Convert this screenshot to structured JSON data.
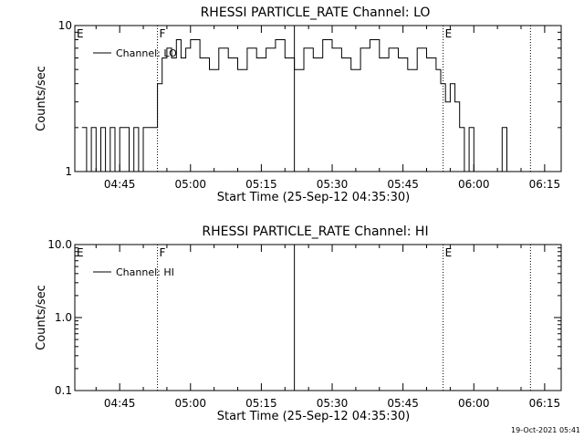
{
  "chart_data": [
    {
      "type": "line",
      "title": "RHESSI PARTICLE_RATE Channel: LO",
      "xlabel": "Start Time (25-Sep-12 04:35:30)",
      "ylabel": "Counts/sec",
      "yscale": "log",
      "ylim": [
        1,
        10
      ],
      "y_ticks": [
        "1",
        "10"
      ],
      "x_ticks": [
        "04:45",
        "05:00",
        "05:15",
        "05:30",
        "05:45",
        "06:00",
        "06:15"
      ],
      "legend": {
        "position": "top-left",
        "entries": [
          "Channel: LO"
        ]
      },
      "markers": [
        {
          "time": "04:35:30",
          "label": "E",
          "style": "dotted"
        },
        {
          "time": "04:53:00",
          "label": "F",
          "style": "dotted"
        },
        {
          "time": "05:22:00",
          "label": "",
          "style": "solid"
        },
        {
          "time": "05:53:30",
          "label": "E",
          "style": "dotted"
        },
        {
          "time": "06:12:00",
          "label": "",
          "style": "dotted"
        }
      ],
      "series": [
        {
          "name": "Channel: LO",
          "t": [
            "04:37:00",
            "04:38:00",
            "04:39:00",
            "04:40:00",
            "04:41:00",
            "04:42:00",
            "04:43:00",
            "04:44:00",
            "04:45:00",
            "04:46:00",
            "04:47:00",
            "04:48:00",
            "04:49:00",
            "04:50:00",
            "04:51:00",
            "04:52:00",
            "04:52:30",
            "04:53:00",
            "04:54:00",
            "04:55:00",
            "04:56:00",
            "04:57:00",
            "04:58:00",
            "04:59:00",
            "05:00:00",
            "05:02:00",
            "05:04:00",
            "05:06:00",
            "05:08:00",
            "05:10:00",
            "05:12:00",
            "05:14:00",
            "05:16:00",
            "05:18:00",
            "05:20:00",
            "05:22:00",
            "05:24:00",
            "05:26:00",
            "05:28:00",
            "05:30:00",
            "05:32:00",
            "05:34:00",
            "05:36:00",
            "05:38:00",
            "05:40:00",
            "05:42:00",
            "05:44:00",
            "05:46:00",
            "05:48:00",
            "05:50:00",
            "05:52:00",
            "05:53:00",
            "05:54:00",
            "05:55:00",
            "05:56:00",
            "05:57:00",
            "05:58:00",
            "05:59:00",
            "06:00:00",
            "06:01:00",
            "06:02:00",
            "06:03:00",
            "06:04:00",
            "06:05:00",
            "06:06:00",
            "06:07:00",
            "06:08:00",
            "06:09:00",
            "06:10:00"
          ],
          "values": [
            2,
            1,
            2,
            1,
            2,
            1,
            2,
            1,
            2,
            2,
            1,
            2,
            1,
            2,
            2,
            2,
            2,
            4,
            6,
            7,
            6,
            8,
            6,
            7,
            8,
            6,
            5,
            7,
            6,
            5,
            7,
            6,
            7,
            8,
            6,
            5,
            7,
            6,
            8,
            7,
            6,
            5,
            7,
            8,
            6,
            7,
            6,
            5,
            7,
            6,
            5,
            4,
            3,
            4,
            3,
            2,
            1,
            2,
            1,
            1,
            1,
            1,
            1,
            1,
            2,
            1,
            1,
            1,
            1
          ]
        }
      ]
    },
    {
      "type": "line",
      "title": "RHESSI PARTICLE_RATE Channel: HI",
      "xlabel": "Start Time (25-Sep-12 04:35:30)",
      "ylabel": "Counts/sec",
      "yscale": "log",
      "ylim": [
        0.1,
        10.0
      ],
      "y_ticks": [
        "0.1",
        "1.0",
        "10.0"
      ],
      "x_ticks": [
        "04:45",
        "05:00",
        "05:15",
        "05:30",
        "05:45",
        "06:00",
        "06:15"
      ],
      "legend": {
        "position": "top-left",
        "entries": [
          "Channel: HI"
        ]
      },
      "markers": [
        {
          "time": "04:35:30",
          "label": "E",
          "style": "dotted"
        },
        {
          "time": "04:53:00",
          "label": "F",
          "style": "dotted"
        },
        {
          "time": "05:22:00",
          "label": "",
          "style": "solid"
        },
        {
          "time": "05:53:30",
          "label": "E",
          "style": "dotted"
        },
        {
          "time": "06:12:00",
          "label": "",
          "style": "dotted"
        }
      ],
      "series": [
        {
          "name": "Channel: HI",
          "t": [],
          "values": []
        }
      ]
    }
  ],
  "footer": {
    "timestamp": "19-Oct-2021 05:41"
  }
}
